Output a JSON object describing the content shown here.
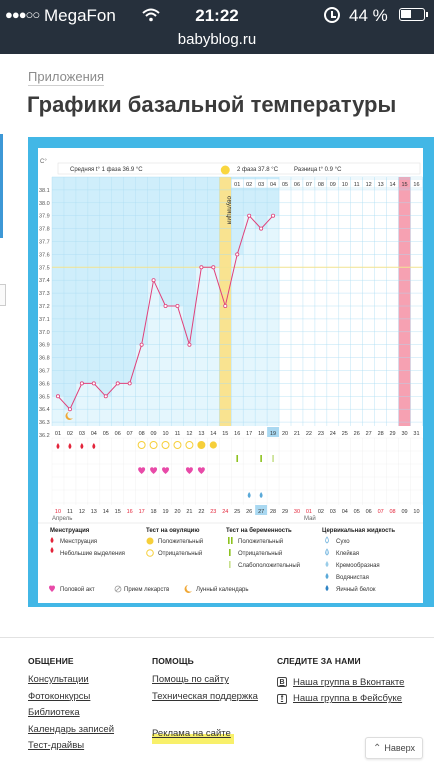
{
  "status_bar": {
    "carrier": "MegaFon",
    "signal_dots": "●●●○○",
    "time": "21:22",
    "battery": "44 %"
  },
  "browser": {
    "url": "babyblog.ru"
  },
  "breadcrumb": "Приложения",
  "page_title": "Графики базальной температуры",
  "chart": {
    "unit_label": "С°",
    "phase1": "Средняя t° 1 фаза 36.9 °С",
    "phase2": "2 фаза 37.8 °С",
    "diff": "Разница t° 0.9 °С",
    "ovulation_label": "овуляция",
    "yticks": [
      "38.1",
      "38.0",
      "37.9",
      "37.8",
      "37.7",
      "37.6",
      "37.5",
      "37.4",
      "37.3",
      "37.2",
      "37.1",
      "37.0",
      "36.9",
      "36.8",
      "36.7",
      "36.6",
      "36.5",
      "36.4",
      "36.3",
      "36.2"
    ],
    "day_numbers": [
      "01",
      "02",
      "03",
      "04",
      "05",
      "06",
      "07",
      "08",
      "09",
      "10",
      "11",
      "12",
      "13",
      "14",
      "15",
      "16",
      "17",
      "18",
      "19",
      "20",
      "21",
      "22",
      "23",
      "24",
      "25",
      "26",
      "27",
      "28",
      "29",
      "30",
      "31"
    ],
    "top_days": [
      "01",
      "02",
      "03",
      "04",
      "05",
      "06",
      "07",
      "08",
      "09",
      "10",
      "11",
      "12",
      "13",
      "14",
      "15",
      "16"
    ],
    "temps": [
      36.5,
      36.4,
      36.6,
      36.6,
      36.5,
      36.6,
      36.6,
      36.9,
      37.4,
      37.2,
      37.2,
      36.9,
      37.5,
      37.5,
      37.2,
      37.6,
      37.9,
      37.8,
      37.9
    ],
    "dates": [
      "10",
      "11",
      "12",
      "13",
      "14",
      "15",
      "16",
      "17",
      "18",
      "19",
      "20",
      "21",
      "22",
      "23",
      "24",
      "25",
      "26",
      "27",
      "28",
      "29",
      "30",
      "01",
      "02",
      "03",
      "04",
      "05",
      "06",
      "07",
      "08",
      "09",
      "10"
    ],
    "month1": "Апрель",
    "month2": "Май"
  },
  "legend": {
    "menstruation": {
      "title": "Менструация",
      "items": [
        "Менструация",
        "Небольшие выделения"
      ]
    },
    "ovulation_test": {
      "title": "Тест на овуляцию",
      "items": [
        "Положительный",
        "Отрицательный"
      ]
    },
    "pregnancy_test": {
      "title": "Тест на беременность",
      "items": [
        "Положительный",
        "Отрицательный",
        "Слабоположительный"
      ]
    },
    "cervical": {
      "title": "Цервикальная жидкость",
      "items": [
        "Сухо",
        "Клейкая",
        "Кремообразная",
        "Водянистая",
        "Яичный белок"
      ]
    },
    "bottom": [
      "Половой акт",
      "Прием лекарств",
      "Лунный календарь"
    ]
  },
  "footer": {
    "col1": {
      "title": "ОБЩЕНИЕ",
      "links": [
        "Консультации",
        "Фотоконкурсы",
        "Библиотека",
        "Календарь записей",
        "Тест-драйвы"
      ]
    },
    "col2": {
      "title": "ПОМОЩЬ",
      "links": [
        "Помощь по сайту",
        "Техническая поддержка",
        "Реклама на сайте"
      ]
    },
    "col3": {
      "title": "СЛЕДИТЕ ЗА НАМИ",
      "links": [
        "Наша группа в Вконтакте",
        "Наша группа в Фейсбуке"
      ]
    },
    "vk_icon": "B",
    "fb_icon": "f"
  },
  "back_button": "Наверх",
  "colors": {
    "accent": "#42b7e6",
    "plot_blue": "#cfeefb",
    "line": "#e0417a",
    "ovulation": "#f9e390",
    "menstruation": "#e3243a",
    "rose": "#f6a1b2"
  }
}
